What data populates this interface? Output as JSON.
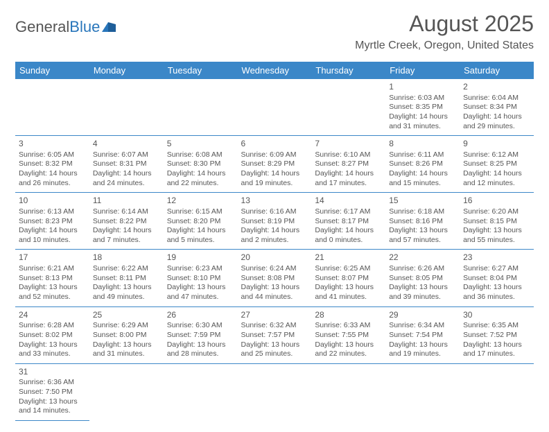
{
  "logo": {
    "text1": "General",
    "text2": "Blue"
  },
  "title": "August 2025",
  "location": "Myrtle Creek, Oregon, United States",
  "dayHeaders": [
    "Sunday",
    "Monday",
    "Tuesday",
    "Wednesday",
    "Thursday",
    "Friday",
    "Saturday"
  ],
  "colors": {
    "headerBg": "#3b87c8",
    "headerText": "#ffffff",
    "bodyText": "#555555",
    "rule": "#3b87c8",
    "logoBlue": "#2976bb"
  },
  "grid": [
    [
      null,
      null,
      null,
      null,
      null,
      {
        "n": "1",
        "sr": "Sunrise: 6:03 AM",
        "ss": "Sunset: 8:35 PM",
        "d1": "Daylight: 14 hours",
        "d2": "and 31 minutes."
      },
      {
        "n": "2",
        "sr": "Sunrise: 6:04 AM",
        "ss": "Sunset: 8:34 PM",
        "d1": "Daylight: 14 hours",
        "d2": "and 29 minutes."
      }
    ],
    [
      {
        "n": "3",
        "sr": "Sunrise: 6:05 AM",
        "ss": "Sunset: 8:32 PM",
        "d1": "Daylight: 14 hours",
        "d2": "and 26 minutes."
      },
      {
        "n": "4",
        "sr": "Sunrise: 6:07 AM",
        "ss": "Sunset: 8:31 PM",
        "d1": "Daylight: 14 hours",
        "d2": "and 24 minutes."
      },
      {
        "n": "5",
        "sr": "Sunrise: 6:08 AM",
        "ss": "Sunset: 8:30 PM",
        "d1": "Daylight: 14 hours",
        "d2": "and 22 minutes."
      },
      {
        "n": "6",
        "sr": "Sunrise: 6:09 AM",
        "ss": "Sunset: 8:29 PM",
        "d1": "Daylight: 14 hours",
        "d2": "and 19 minutes."
      },
      {
        "n": "7",
        "sr": "Sunrise: 6:10 AM",
        "ss": "Sunset: 8:27 PM",
        "d1": "Daylight: 14 hours",
        "d2": "and 17 minutes."
      },
      {
        "n": "8",
        "sr": "Sunrise: 6:11 AM",
        "ss": "Sunset: 8:26 PM",
        "d1": "Daylight: 14 hours",
        "d2": "and 15 minutes."
      },
      {
        "n": "9",
        "sr": "Sunrise: 6:12 AM",
        "ss": "Sunset: 8:25 PM",
        "d1": "Daylight: 14 hours",
        "d2": "and 12 minutes."
      }
    ],
    [
      {
        "n": "10",
        "sr": "Sunrise: 6:13 AM",
        "ss": "Sunset: 8:23 PM",
        "d1": "Daylight: 14 hours",
        "d2": "and 10 minutes."
      },
      {
        "n": "11",
        "sr": "Sunrise: 6:14 AM",
        "ss": "Sunset: 8:22 PM",
        "d1": "Daylight: 14 hours",
        "d2": "and 7 minutes."
      },
      {
        "n": "12",
        "sr": "Sunrise: 6:15 AM",
        "ss": "Sunset: 8:20 PM",
        "d1": "Daylight: 14 hours",
        "d2": "and 5 minutes."
      },
      {
        "n": "13",
        "sr": "Sunrise: 6:16 AM",
        "ss": "Sunset: 8:19 PM",
        "d1": "Daylight: 14 hours",
        "d2": "and 2 minutes."
      },
      {
        "n": "14",
        "sr": "Sunrise: 6:17 AM",
        "ss": "Sunset: 8:17 PM",
        "d1": "Daylight: 14 hours",
        "d2": "and 0 minutes."
      },
      {
        "n": "15",
        "sr": "Sunrise: 6:18 AM",
        "ss": "Sunset: 8:16 PM",
        "d1": "Daylight: 13 hours",
        "d2": "and 57 minutes."
      },
      {
        "n": "16",
        "sr": "Sunrise: 6:20 AM",
        "ss": "Sunset: 8:15 PM",
        "d1": "Daylight: 13 hours",
        "d2": "and 55 minutes."
      }
    ],
    [
      {
        "n": "17",
        "sr": "Sunrise: 6:21 AM",
        "ss": "Sunset: 8:13 PM",
        "d1": "Daylight: 13 hours",
        "d2": "and 52 minutes."
      },
      {
        "n": "18",
        "sr": "Sunrise: 6:22 AM",
        "ss": "Sunset: 8:11 PM",
        "d1": "Daylight: 13 hours",
        "d2": "and 49 minutes."
      },
      {
        "n": "19",
        "sr": "Sunrise: 6:23 AM",
        "ss": "Sunset: 8:10 PM",
        "d1": "Daylight: 13 hours",
        "d2": "and 47 minutes."
      },
      {
        "n": "20",
        "sr": "Sunrise: 6:24 AM",
        "ss": "Sunset: 8:08 PM",
        "d1": "Daylight: 13 hours",
        "d2": "and 44 minutes."
      },
      {
        "n": "21",
        "sr": "Sunrise: 6:25 AM",
        "ss": "Sunset: 8:07 PM",
        "d1": "Daylight: 13 hours",
        "d2": "and 41 minutes."
      },
      {
        "n": "22",
        "sr": "Sunrise: 6:26 AM",
        "ss": "Sunset: 8:05 PM",
        "d1": "Daylight: 13 hours",
        "d2": "and 39 minutes."
      },
      {
        "n": "23",
        "sr": "Sunrise: 6:27 AM",
        "ss": "Sunset: 8:04 PM",
        "d1": "Daylight: 13 hours",
        "d2": "and 36 minutes."
      }
    ],
    [
      {
        "n": "24",
        "sr": "Sunrise: 6:28 AM",
        "ss": "Sunset: 8:02 PM",
        "d1": "Daylight: 13 hours",
        "d2": "and 33 minutes."
      },
      {
        "n": "25",
        "sr": "Sunrise: 6:29 AM",
        "ss": "Sunset: 8:00 PM",
        "d1": "Daylight: 13 hours",
        "d2": "and 31 minutes."
      },
      {
        "n": "26",
        "sr": "Sunrise: 6:30 AM",
        "ss": "Sunset: 7:59 PM",
        "d1": "Daylight: 13 hours",
        "d2": "and 28 minutes."
      },
      {
        "n": "27",
        "sr": "Sunrise: 6:32 AM",
        "ss": "Sunset: 7:57 PM",
        "d1": "Daylight: 13 hours",
        "d2": "and 25 minutes."
      },
      {
        "n": "28",
        "sr": "Sunrise: 6:33 AM",
        "ss": "Sunset: 7:55 PM",
        "d1": "Daylight: 13 hours",
        "d2": "and 22 minutes."
      },
      {
        "n": "29",
        "sr": "Sunrise: 6:34 AM",
        "ss": "Sunset: 7:54 PM",
        "d1": "Daylight: 13 hours",
        "d2": "and 19 minutes."
      },
      {
        "n": "30",
        "sr": "Sunrise: 6:35 AM",
        "ss": "Sunset: 7:52 PM",
        "d1": "Daylight: 13 hours",
        "d2": "and 17 minutes."
      }
    ],
    [
      {
        "n": "31",
        "sr": "Sunrise: 6:36 AM",
        "ss": "Sunset: 7:50 PM",
        "d1": "Daylight: 13 hours",
        "d2": "and 14 minutes."
      },
      null,
      null,
      null,
      null,
      null,
      null
    ]
  ]
}
